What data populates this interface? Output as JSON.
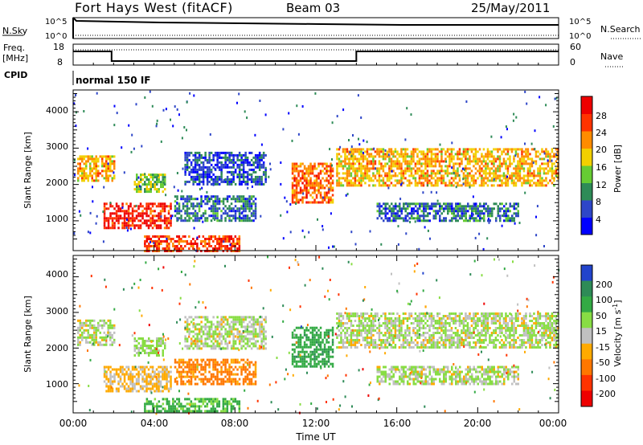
{
  "header": {
    "station": "Fort Hays West (fitACF)",
    "beam": "Beam 03",
    "date": "25/May/2011"
  },
  "noise_panel": {
    "left_label": "N.Sky",
    "right_label": "N.Search",
    "left_ticks": [
      "10^5",
      "10^0"
    ],
    "right_ticks": [
      "10^5",
      "10^0"
    ]
  },
  "freq_panel": {
    "left_label_1": "Freq.",
    "left_label_2": "[MHz]",
    "right_label": "Nave",
    "left_ticks": [
      "18",
      "8"
    ],
    "right_ticks": [
      "60",
      "0"
    ],
    "freq_segments": [
      {
        "start_h": 0.0,
        "end_h": 1.9,
        "level": "high"
      },
      {
        "start_h": 1.9,
        "end_h": 14.0,
        "level": "low"
      },
      {
        "start_h": 14.0,
        "end_h": 24.0,
        "level": "high"
      }
    ]
  },
  "cpid": {
    "label": "CPID",
    "mode": "normal 150 IF"
  },
  "x_axis": {
    "title": "Time UT",
    "ticks": [
      "00:00",
      "04:00",
      "08:00",
      "12:00",
      "16:00",
      "20:00",
      "00:00"
    ],
    "range_hours": [
      0,
      24
    ]
  },
  "power_panel": {
    "ylabel": "Slant Range [km]",
    "yticks": [
      "1000",
      "2000",
      "3000",
      "4000"
    ],
    "ylim_km": [
      180,
      4600
    ],
    "colorbar_label": "Power [dB]",
    "colorbar_ticks": [
      "4",
      "8",
      "12",
      "16",
      "20",
      "24",
      "28"
    ],
    "colors": [
      "#0000ff",
      "#2e46c8",
      "#2e8b57",
      "#66cc33",
      "#f2d000",
      "#ff8c00",
      "#ff3300",
      "#ee0000"
    ]
  },
  "velocity_panel": {
    "ylabel": "Slant Range [km]",
    "yticks": [
      "1000",
      "2000",
      "3000",
      "4000"
    ],
    "ylim_km": [
      180,
      4600
    ],
    "colorbar_label": "Velocity [m s",
    "colorbar_label_sup": "-1",
    "colorbar_label_end": "]",
    "colorbar_ticks": [
      "200",
      "100",
      "50",
      "15",
      "-15",
      "-50",
      "-100",
      "-200"
    ],
    "colors": [
      "#2244cc",
      "#2e8b57",
      "#33aa44",
      "#88dd44",
      "#c0c0c0",
      "#ffaa00",
      "#ff7700",
      "#ff3300",
      "#ee0000"
    ]
  },
  "chart_data": {
    "type": "heatmap",
    "x_units": "hours UT",
    "y_units": "slant range km",
    "echo_regions": [
      {
        "t0": 0.2,
        "t1": 2.0,
        "r0": 2100,
        "r1": 2800,
        "power_dB": 20,
        "velocity": 0
      },
      {
        "t0": 1.5,
        "t1": 4.8,
        "r0": 800,
        "r1": 1500,
        "power_dB": 28,
        "velocity": -20
      },
      {
        "t0": 3.0,
        "t1": 4.5,
        "r0": 1800,
        "r1": 2300,
        "power_dB": 14,
        "velocity": 10
      },
      {
        "t0": 3.5,
        "t1": 8.2,
        "r0": 200,
        "r1": 600,
        "power_dB": 26,
        "velocity": 40
      },
      {
        "t0": 5.0,
        "t1": 9.0,
        "r0": 1000,
        "r1": 1700,
        "power_dB": 8,
        "velocity": -60
      },
      {
        "t0": 5.5,
        "t1": 9.5,
        "r0": 2000,
        "r1": 2900,
        "power_dB": 6,
        "velocity": 0
      },
      {
        "t0": 10.8,
        "t1": 12.8,
        "r0": 1500,
        "r1": 2600,
        "power_dB": 24,
        "velocity": 60
      },
      {
        "t0": 13.0,
        "t1": 24.0,
        "r0": 2000,
        "r1": 3000,
        "power_dB": 20,
        "velocity": 0
      },
      {
        "t0": 15.0,
        "t1": 22.0,
        "r0": 1000,
        "r1": 1500,
        "power_dB": 8,
        "velocity": 0
      }
    ]
  }
}
